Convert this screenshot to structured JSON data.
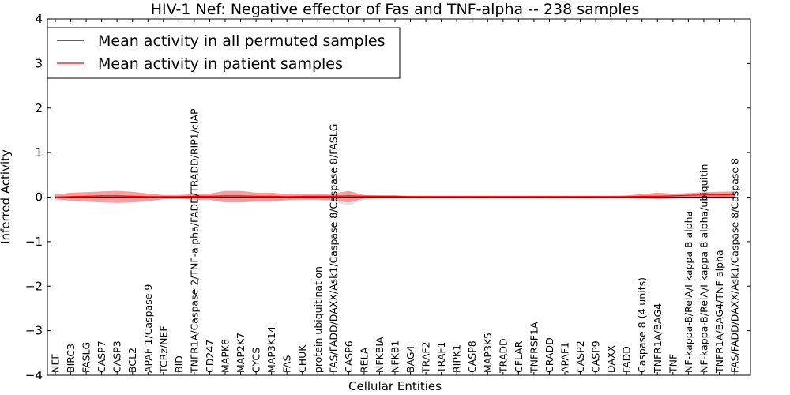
{
  "chart_data": {
    "type": "line",
    "title": "HIV-1 Nef: Negative effector of Fas and TNF-alpha -- 238 samples",
    "xlabel": "Cellular Entities",
    "ylabel": "Inferred Activity",
    "ylim": [
      -4,
      4
    ],
    "yticks": [
      -4,
      -3,
      -2,
      -1,
      0,
      1,
      2,
      3,
      4
    ],
    "ytick_labels": [
      "−4",
      "−3",
      "−2",
      "−1",
      "0",
      "1",
      "2",
      "3",
      "4"
    ],
    "legend_position": "top-left",
    "categories": [
      "NEF",
      "BIRC3",
      "FASLG",
      "CASP7",
      "CASP3",
      "BCL2",
      "APAF-1/Caspase 9",
      "TCRz/NEF",
      "BID",
      "TNFR1A/Caspase 2/TNF-alpha/FADD/TRADD/RIP1/cIAP",
      "CD247",
      "MAPK8",
      "MAP2K7",
      "CYCS",
      "MAP3K14",
      "FAS",
      "CHUK",
      "protein ubiquitination",
      "FAS/FADD/DAXX/Ask1/Caspase 8/Caspase 8/FASLG",
      "CASP6",
      "RELA",
      "NFKBIA",
      "NFKB1",
      "BAG4",
      "TRAF2",
      "TRAF1",
      "RIPK1",
      "CASP8",
      "MAP3K5",
      "TRADD",
      "CFLAR",
      "TNFRSF1A",
      "CRADD",
      "APAF1",
      "CASP2",
      "CASP9",
      "DAXX",
      "FADD",
      "Caspase 8 (4 units)",
      "TNFR1A/BAG4",
      "TNF",
      "NF-kappa-B/RelA/I kappa B alpha",
      "NF-kappa-B/RelA/I kappa B alpha/ubiquitin",
      "TNFR1A/BAG4/TNF-alpha",
      "FAS/FADD/DAXX/Ask1/Caspase 8/Caspase 8"
    ],
    "series": [
      {
        "name": "Mean activity in all permuted samples",
        "color": "#000000",
        "values": [
          0,
          0,
          0,
          0,
          0,
          0,
          0,
          0,
          0,
          0,
          0,
          0,
          0,
          0,
          0,
          0,
          0,
          0,
          0,
          0,
          0,
          0,
          0,
          0,
          0,
          0,
          0,
          0,
          0,
          0,
          0,
          0,
          0,
          0,
          0,
          0,
          0,
          0,
          0,
          0,
          0,
          0,
          0,
          0,
          0
        ],
        "band_upper": [
          0.02,
          0.02,
          0.02,
          0.02,
          0.02,
          0.02,
          0.02,
          0.02,
          0.02,
          0.02,
          0.02,
          0.02,
          0.02,
          0.02,
          0.02,
          0.02,
          0.02,
          0.02,
          0.02,
          0.02,
          0.02,
          0.02,
          0.02,
          0.02,
          0.02,
          0.02,
          0.02,
          0.02,
          0.02,
          0.02,
          0.02,
          0.02,
          0.02,
          0.02,
          0.02,
          0.02,
          0.02,
          0.02,
          0.02,
          0.02,
          0.02,
          0.02,
          0.02,
          0.02,
          0.02
        ],
        "band_lower": [
          -0.05,
          -0.05,
          -0.05,
          -0.05,
          -0.05,
          -0.05,
          -0.05,
          -0.05,
          -0.05,
          -0.05,
          -0.05,
          -0.1,
          -0.1,
          -0.1,
          -0.08,
          -0.07,
          -0.06,
          -0.06,
          -0.1,
          -0.18,
          -0.06,
          -0.05,
          -0.05,
          -0.05,
          -0.05,
          -0.05,
          -0.05,
          -0.05,
          -0.05,
          -0.05,
          -0.05,
          -0.05,
          -0.05,
          -0.05,
          -0.05,
          -0.05,
          -0.05,
          -0.05,
          -0.05,
          -0.05,
          -0.05,
          -0.05,
          -0.05,
          -0.05,
          -0.05
        ]
      },
      {
        "name": "Mean activity in patient samples",
        "color": "#ff0000",
        "values": [
          0,
          0.01,
          0.02,
          0.03,
          0.03,
          0.02,
          0.01,
          0.01,
          0.01,
          0.02,
          0.02,
          0.03,
          0.03,
          0.02,
          0.02,
          0.01,
          0.02,
          0.02,
          0.02,
          0.03,
          0.02,
          0.02,
          0.02,
          0.01,
          0.01,
          0.01,
          0.01,
          0.01,
          0.01,
          0.01,
          0.01,
          0.01,
          0.01,
          0.01,
          0.01,
          0.01,
          0.01,
          0.01,
          0.02,
          0.02,
          0.03,
          0.04,
          0.05,
          0.05,
          0.06
        ],
        "band_upper": [
          0.06,
          0.1,
          0.11,
          0.13,
          0.14,
          0.12,
          0.08,
          0.05,
          0.05,
          0.07,
          0.08,
          0.14,
          0.14,
          0.1,
          0.1,
          0.07,
          0.08,
          0.08,
          0.08,
          0.14,
          0.05,
          0.04,
          0.04,
          0.03,
          0.03,
          0.03,
          0.03,
          0.03,
          0.03,
          0.03,
          0.03,
          0.03,
          0.03,
          0.03,
          0.03,
          0.03,
          0.03,
          0.04,
          0.07,
          0.1,
          0.08,
          0.09,
          0.11,
          0.12,
          0.13
        ],
        "band_lower": [
          -0.05,
          -0.08,
          -0.1,
          -0.12,
          -0.13,
          -0.12,
          -0.09,
          -0.05,
          -0.04,
          -0.06,
          -0.06,
          -0.12,
          -0.12,
          -0.1,
          -0.1,
          -0.07,
          -0.06,
          -0.06,
          -0.07,
          -0.12,
          -0.03,
          -0.02,
          -0.02,
          -0.02,
          -0.02,
          -0.02,
          -0.02,
          -0.02,
          -0.02,
          -0.02,
          -0.02,
          -0.02,
          -0.02,
          -0.02,
          -0.02,
          -0.02,
          -0.02,
          -0.02,
          -0.03,
          -0.05,
          -0.03,
          -0.02,
          -0.02,
          -0.01,
          -0.01
        ]
      }
    ]
  }
}
